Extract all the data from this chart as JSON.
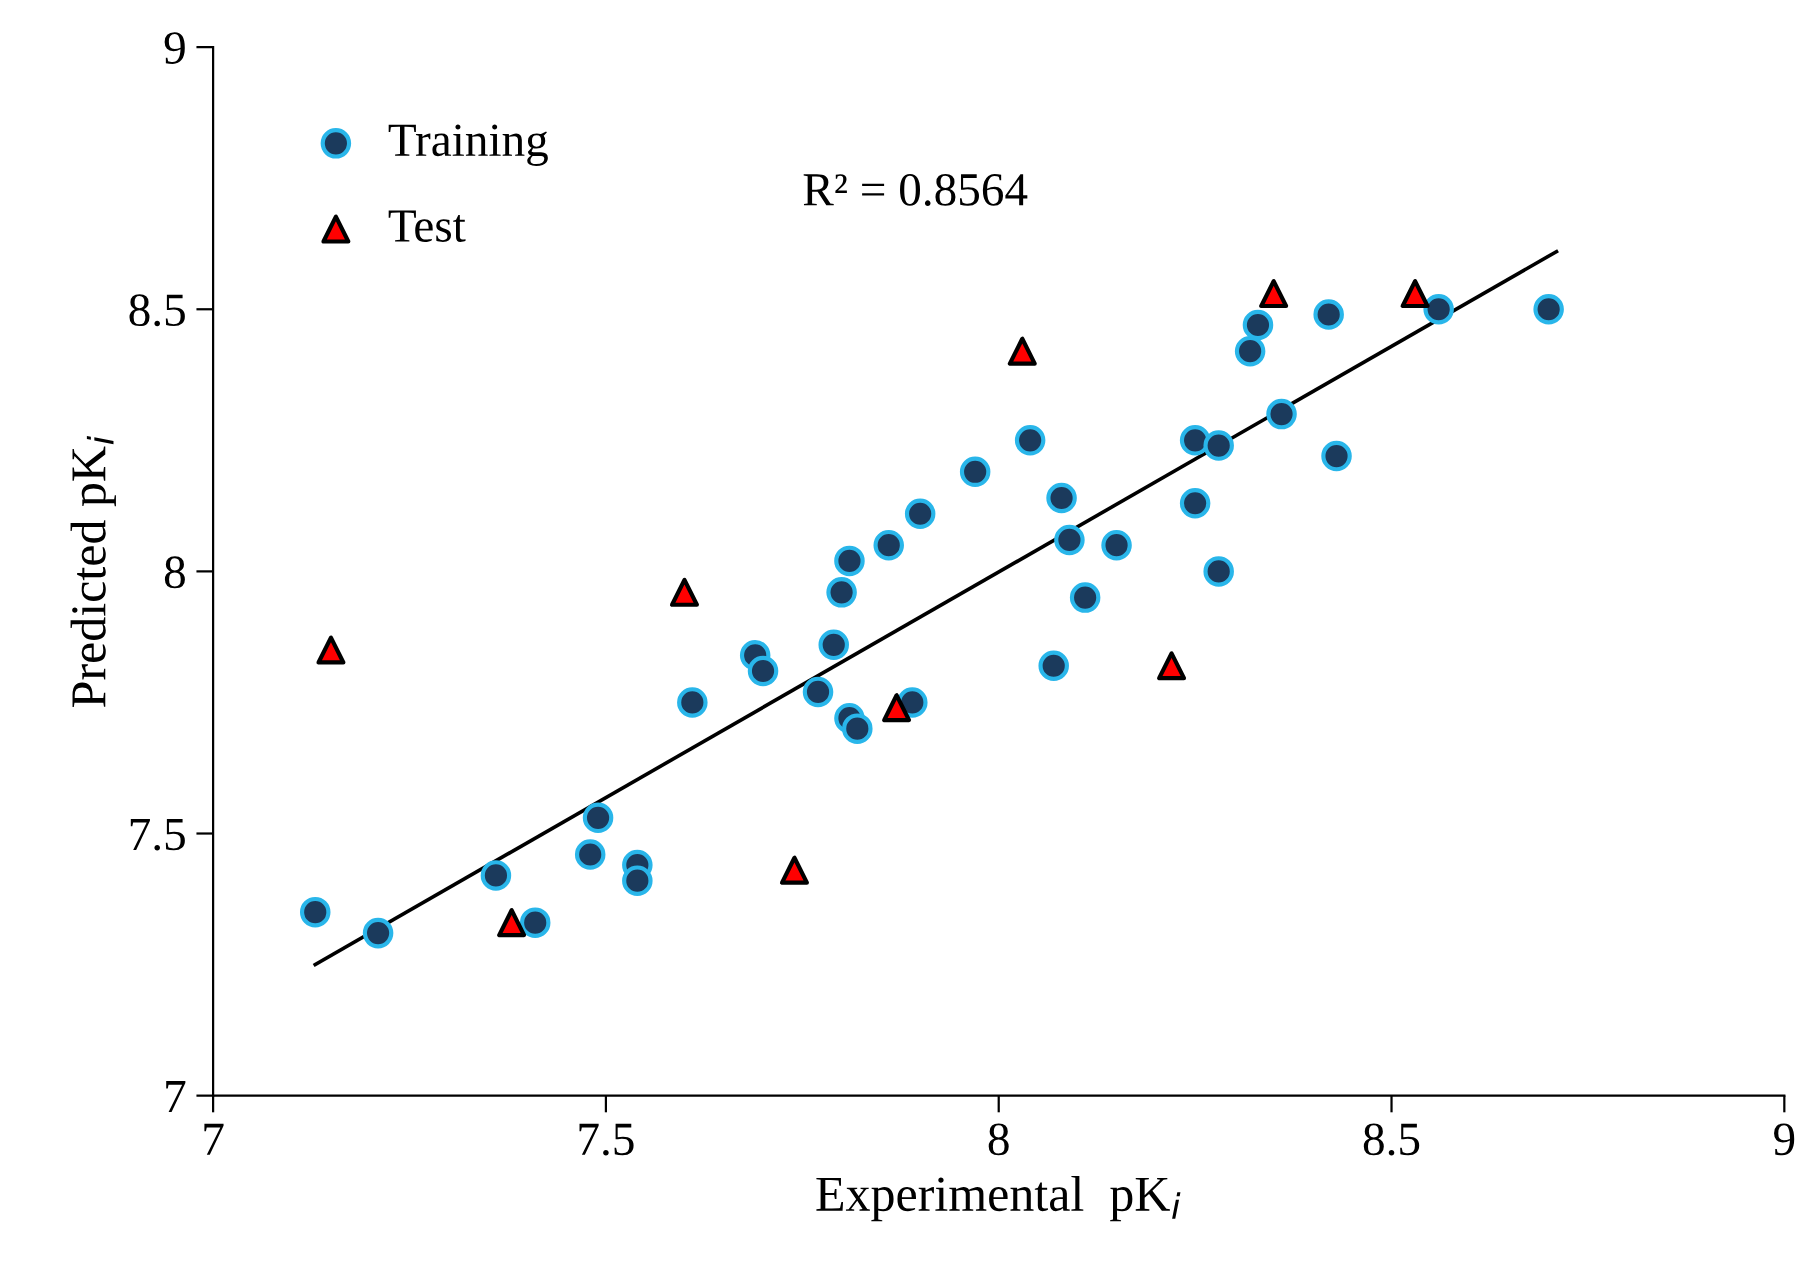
{
  "chart_data": {
    "type": "scatter",
    "xlabel": "Experimental  pK$_{i}$",
    "ylabel": "Predicted pK$_{i}$",
    "xlim": [
      7,
      9
    ],
    "ylim": [
      7,
      9
    ],
    "xticks": [
      7,
      7.5,
      8,
      8.5,
      9
    ],
    "yticks": [
      7,
      7.5,
      8,
      8.5,
      9
    ],
    "grid": false,
    "legend": "top left",
    "annotations": [
      "R² = 0.8564"
    ],
    "series": [
      {
        "name": "Training",
        "marker": "circle",
        "color": "#1b3a5c",
        "x": [
          7.13,
          7.21,
          7.36,
          7.41,
          7.48,
          7.49,
          7.54,
          7.54,
          7.61,
          7.69,
          7.7,
          7.77,
          7.79,
          7.8,
          7.81,
          7.81,
          7.82,
          7.86,
          7.89,
          7.9,
          7.97,
          8.04,
          8.07,
          8.08,
          8.09,
          8.11,
          8.15,
          8.25,
          8.25,
          8.28,
          8.28,
          8.32,
          8.33,
          8.36,
          8.42,
          8.43,
          8.56,
          8.7
        ],
        "values": [
          7.35,
          7.31,
          7.42,
          7.33,
          7.46,
          7.53,
          7.44,
          7.41,
          7.75,
          7.84,
          7.81,
          7.77,
          7.86,
          7.96,
          8.02,
          7.72,
          7.7,
          8.05,
          7.75,
          8.11,
          8.19,
          8.25,
          7.82,
          8.14,
          8.06,
          7.95,
          8.05,
          8.25,
          8.13,
          8.24,
          8.0,
          8.42,
          8.47,
          8.3,
          8.49,
          8.22,
          8.5,
          8.5
        ]
      },
      {
        "name": "Test",
        "marker": "triangle",
        "color": "#ff0000",
        "x": [
          7.15,
          7.38,
          7.6,
          7.74,
          7.87,
          8.03,
          8.22,
          8.35,
          8.53
        ],
        "values": [
          7.85,
          7.33,
          7.96,
          7.43,
          7.74,
          8.42,
          7.82,
          8.53,
          8.53
        ]
      },
      {
        "type": "line",
        "marker": "none",
        "line_style": "solid",
        "color": "#000000",
        "x": [
          7.13,
          8.71
        ],
        "values": [
          7.25,
          8.61
        ]
      }
    ]
  }
}
